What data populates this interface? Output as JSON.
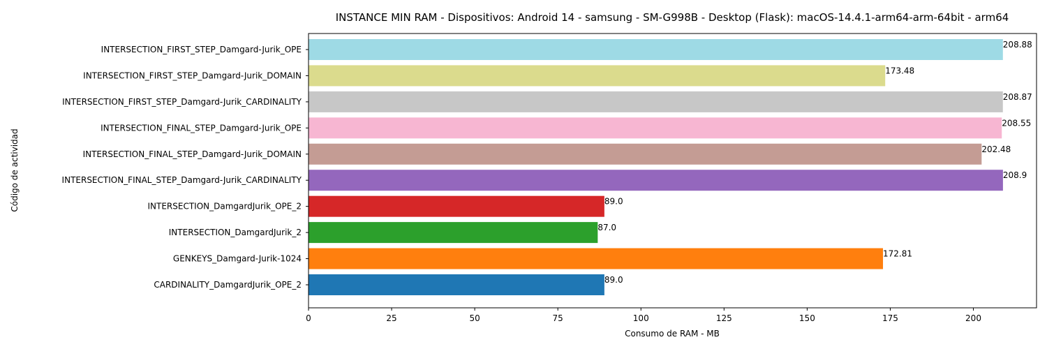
{
  "chart_data": {
    "type": "bar",
    "orientation": "horizontal",
    "title": "INSTANCE MIN RAM - Dispositivos: Android 14 - samsung - SM-G998B - Desktop (Flask): macOS-14.4.1-arm64-arm-64bit - arm64",
    "xlabel": "Consumo de RAM - MB",
    "ylabel": "Código de actividad",
    "xlim": [
      0,
      219
    ],
    "xticks": [
      "0",
      "25",
      "50",
      "75",
      "100",
      "125",
      "150",
      "175",
      "200"
    ],
    "grid": false,
    "categories": [
      "CARDINALITY_DamgardJurik_OPE_2",
      "GENKEYS_Damgard-Jurik-1024",
      "INTERSECTION_DamgardJurik_2",
      "INTERSECTION_DamgardJurik_OPE_2",
      "INTERSECTION_FINAL_STEP_Damgard-Jurik_CARDINALITY",
      "INTERSECTION_FINAL_STEP_Damgard-Jurik_DOMAIN",
      "INTERSECTION_FINAL_STEP_Damgard-Jurik_OPE",
      "INTERSECTION_FIRST_STEP_Damgard-Jurik_CARDINALITY",
      "INTERSECTION_FIRST_STEP_Damgard-Jurik_DOMAIN",
      "INTERSECTION_FIRST_STEP_Damgard-Jurik_OPE"
    ],
    "values": [
      89.0,
      172.81,
      87.0,
      89.0,
      208.9,
      202.48,
      208.55,
      208.87,
      173.48,
      208.88
    ],
    "value_labels": [
      "89.0",
      "172.81",
      "87.0",
      "89.0",
      "208.9",
      "202.48",
      "208.55",
      "208.87",
      "173.48",
      "208.88"
    ],
    "colors": [
      "#1f77b4",
      "#ff7f0e",
      "#2ca02c",
      "#d62728",
      "#9467bd",
      "#c49c94",
      "#f7b6d2",
      "#c7c7c7",
      "#dbdb8d",
      "#9edae5"
    ]
  }
}
